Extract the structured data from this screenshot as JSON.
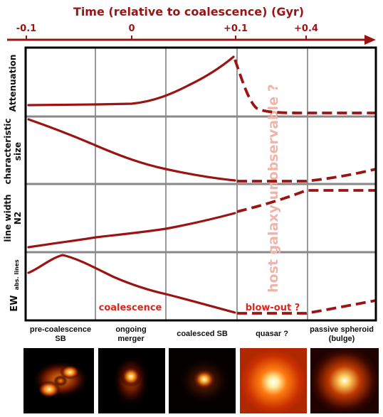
{
  "timeline": {
    "title": "Time (relative to coalescence)  (Gyr)",
    "ticks": [
      "-0.1",
      "0",
      "+0.1",
      "+0.4"
    ]
  },
  "panels": [
    {
      "ylabel": "Attenuation"
    },
    {
      "ylabel": "characteristic size"
    },
    {
      "ylabel": "line width N2"
    },
    {
      "ylabel": "EW",
      "ylabel_sub": "abs. lines"
    }
  ],
  "annotations": {
    "coalescence": "coalescence",
    "blowout": "blow-out ?",
    "host": "host galaxy unobservable ?"
  },
  "stages": [
    {
      "label": "pre-coalescence\nSB"
    },
    {
      "label": "ongoing\nmerger"
    },
    {
      "label": "coalesced SB"
    },
    {
      "label": "quasar ?"
    },
    {
      "label": "passive spheroid\n(bulge)"
    }
  ],
  "colors": {
    "accent": "#9b1414",
    "annotation": "#e0251b",
    "faded": "#f0b4a8",
    "divider": "#888888"
  }
}
